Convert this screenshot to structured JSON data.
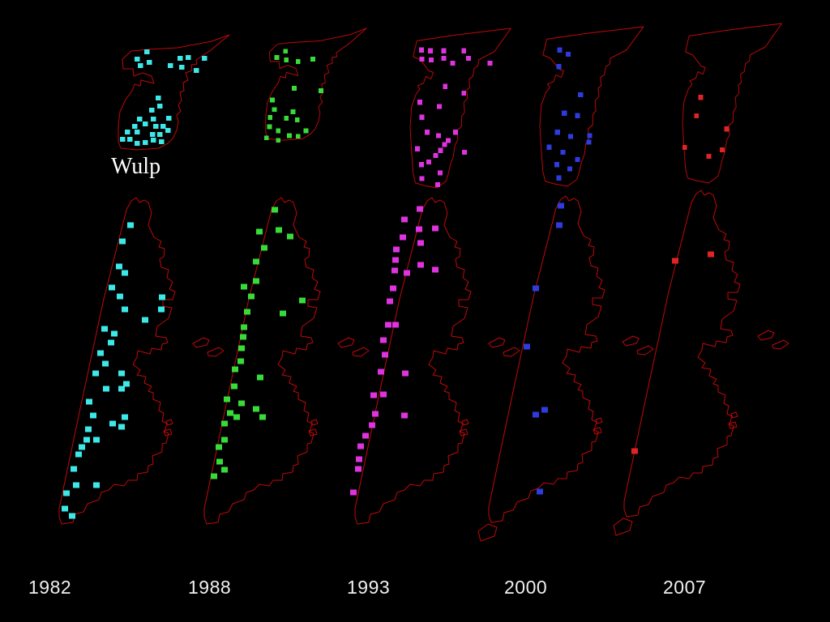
{
  "slide": {
    "region_label": "Wulp",
    "background_color": "#000000",
    "outline_color": "#c00909",
    "text_color": "#ffffff"
  },
  "chart_data": {
    "type": "scatter",
    "title": "Wulp",
    "description": "Distribution maps of Wulp territories on two islands across five survey years; each colored square is one occupied site plotted on red coastline outlines.",
    "categories": [
      "1982",
      "1988",
      "1993",
      "2000",
      "2007"
    ],
    "legend_position": "bottom",
    "units": "map-local coordinates (small map viewBox 150 wide; large map viewBox 220x445)",
    "series": [
      {
        "name": "1982",
        "color": "#3de8e8",
        "small_map_variant": "short",
        "extra_islet": false,
        "count_small": 31,
        "count_large": 36,
        "small_map_points": [
          [
            37,
            22
          ],
          [
            25,
            31
          ],
          [
            40,
            35
          ],
          [
            66,
            39
          ],
          [
            78,
            30
          ],
          [
            88,
            29
          ],
          [
            108,
            30
          ],
          [
            80,
            41
          ],
          [
            98,
            45
          ],
          [
            29,
            39
          ],
          [
            51,
            79
          ],
          [
            53,
            89
          ],
          [
            43,
            94
          ],
          [
            28,
            105
          ],
          [
            45,
            105
          ],
          [
            64,
            104
          ],
          [
            22,
            114
          ],
          [
            48,
            114
          ],
          [
            57,
            114
          ],
          [
            13,
            121
          ],
          [
            25,
            121
          ],
          [
            44,
            124
          ],
          [
            53,
            124
          ],
          [
            7,
            130
          ],
          [
            16,
            130
          ],
          [
            25,
            135
          ],
          [
            35,
            134
          ],
          [
            45,
            131
          ],
          [
            55,
            133
          ],
          [
            63,
            119
          ],
          [
            35,
            111
          ]
        ],
        "large_map_points": [
          [
            103,
            44
          ],
          [
            93,
            64
          ],
          [
            89,
            95
          ],
          [
            96,
            103
          ],
          [
            80,
            121
          ],
          [
            90,
            132
          ],
          [
            142,
            133
          ],
          [
            141,
            148
          ],
          [
            96,
            148
          ],
          [
            121,
            161
          ],
          [
            71,
            172
          ],
          [
            83,
            178
          ],
          [
            79,
            189
          ],
          [
            66,
            202
          ],
          [
            72,
            215
          ],
          [
            60,
            227
          ],
          [
            92,
            227
          ],
          [
            98,
            240
          ],
          [
            73,
            246
          ],
          [
            92,
            246
          ],
          [
            52,
            262
          ],
          [
            57,
            279
          ],
          [
            96,
            281
          ],
          [
            81,
            289
          ],
          [
            92,
            293
          ],
          [
            51,
            296
          ],
          [
            49,
            309
          ],
          [
            61,
            309
          ],
          [
            43,
            318
          ],
          [
            39,
            327
          ],
          [
            33,
            345
          ],
          [
            36,
            365
          ],
          [
            61,
            365
          ],
          [
            24,
            375
          ],
          [
            22,
            394
          ],
          [
            31,
            403
          ]
        ]
      },
      {
        "name": "1988",
        "color": "#38dc38",
        "small_map_variant": "short",
        "extra_islet": false,
        "count_small": 20,
        "count_large": 31,
        "small_map_points": [
          [
            29,
            30
          ],
          [
            17,
            38
          ],
          [
            30,
            41
          ],
          [
            46,
            43
          ],
          [
            66,
            40
          ],
          [
            41,
            77
          ],
          [
            77,
            80
          ],
          [
            11,
            92
          ],
          [
            14,
            104
          ],
          [
            39,
            107
          ],
          [
            8,
            114
          ],
          [
            30,
            115
          ],
          [
            45,
            117
          ],
          [
            7,
            126
          ],
          [
            19,
            131
          ],
          [
            34,
            137
          ],
          [
            46,
            138
          ],
          [
            57,
            131
          ],
          [
            19,
            143
          ],
          [
            3,
            140
          ]
        ],
        "large_map_points": [
          [
            102,
            25
          ],
          [
            83,
            52
          ],
          [
            107,
            50
          ],
          [
            121,
            58
          ],
          [
            89,
            72
          ],
          [
            79,
            89
          ],
          [
            79,
            113
          ],
          [
            64,
            120
          ],
          [
            73,
            132
          ],
          [
            136,
            137
          ],
          [
            68,
            151
          ],
          [
            112,
            153
          ],
          [
            64,
            170
          ],
          [
            63,
            182
          ],
          [
            61,
            196
          ],
          [
            60,
            212
          ],
          [
            53,
            222
          ],
          [
            84,
            232
          ],
          [
            52,
            243
          ],
          [
            43,
            259
          ],
          [
            61,
            264
          ],
          [
            79,
            271
          ],
          [
            47,
            276
          ],
          [
            55,
            281
          ],
          [
            87,
            281
          ],
          [
            40,
            289
          ],
          [
            40,
            309
          ],
          [
            33,
            318
          ],
          [
            34,
            336
          ],
          [
            40,
            346
          ],
          [
            27,
            354
          ]
        ]
      },
      {
        "name": "1993",
        "color": "#e033e0",
        "small_map_variant": "tall",
        "extra_islet": false,
        "count_small": 29,
        "count_large": 30,
        "small_map_points": [
          [
            15,
            27
          ],
          [
            27,
            28
          ],
          [
            45,
            28
          ],
          [
            72,
            28
          ],
          [
            16,
            38
          ],
          [
            28,
            39
          ],
          [
            45,
            37
          ],
          [
            78,
            37
          ],
          [
            57,
            43
          ],
          [
            107,
            43
          ],
          [
            47,
            71
          ],
          [
            72,
            79
          ],
          [
            13,
            90
          ],
          [
            39,
            95
          ],
          [
            16,
            108
          ],
          [
            23,
            126
          ],
          [
            61,
            126
          ],
          [
            38,
            130
          ],
          [
            51,
            136
          ],
          [
            46,
            141
          ],
          [
            41,
            148
          ],
          [
            10,
            146
          ],
          [
            34,
            154
          ],
          [
            25,
            162
          ],
          [
            15,
            165
          ],
          [
            40,
            175
          ],
          [
            16,
            182
          ],
          [
            37,
            189
          ],
          [
            73,
            150
          ]
        ],
        "large_map_points": [
          [
            95,
            24
          ],
          [
            76,
            37
          ],
          [
            94,
            49
          ],
          [
            114,
            48
          ],
          [
            74,
            59
          ],
          [
            96,
            66
          ],
          [
            66,
            74
          ],
          [
            65,
            87
          ],
          [
            96,
            93
          ],
          [
            114,
            99
          ],
          [
            64,
            100
          ],
          [
            79,
            103
          ],
          [
            62,
            122
          ],
          [
            58,
            138
          ],
          [
            56,
            167
          ],
          [
            65,
            167
          ],
          [
            50,
            186
          ],
          [
            52,
            204
          ],
          [
            47,
            225
          ],
          [
            77,
            227
          ],
          [
            38,
            254
          ],
          [
            50,
            253
          ],
          [
            40,
            277
          ],
          [
            76,
            279
          ],
          [
            36,
            291
          ],
          [
            28,
            304
          ],
          [
            22,
            317
          ],
          [
            20,
            333
          ],
          [
            19,
            345
          ],
          [
            13,
            374
          ]
        ]
      },
      {
        "name": "2000",
        "color": "#2e3cdf",
        "small_map_variant": "tall",
        "extra_islet": true,
        "count_small": 16,
        "count_large": 7,
        "small_map_points": [
          [
            26,
            29
          ],
          [
            37,
            34
          ],
          [
            25,
            49
          ],
          [
            53,
            83
          ],
          [
            32,
            105
          ],
          [
            49,
            108
          ],
          [
            23,
            128
          ],
          [
            40,
            133
          ],
          [
            65,
            132
          ],
          [
            64,
            140
          ],
          [
            12,
            146
          ],
          [
            30,
            152
          ],
          [
            49,
            161
          ],
          [
            22,
            167
          ],
          [
            39,
            172
          ],
          [
            25,
            183
          ]
        ],
        "large_map_points": [
          [
            104,
            22
          ],
          [
            102,
            46
          ],
          [
            73,
            124
          ],
          [
            62,
            196
          ],
          [
            84,
            274
          ],
          [
            73,
            280
          ],
          [
            78,
            375
          ]
        ]
      },
      {
        "name": "2007",
        "color": "#e02423",
        "small_map_variant": "tall",
        "extra_islet": true,
        "count_small": 6,
        "count_large": 3,
        "small_map_points": [
          [
            25,
            90
          ],
          [
            19,
            112
          ],
          [
            60,
            128
          ],
          [
            3,
            150
          ],
          [
            54,
            153
          ],
          [
            36,
            161
          ]
        ],
        "large_map_points": [
          [
            78,
            97
          ],
          [
            122,
            89
          ],
          [
            28,
            332
          ]
        ]
      }
    ]
  }
}
